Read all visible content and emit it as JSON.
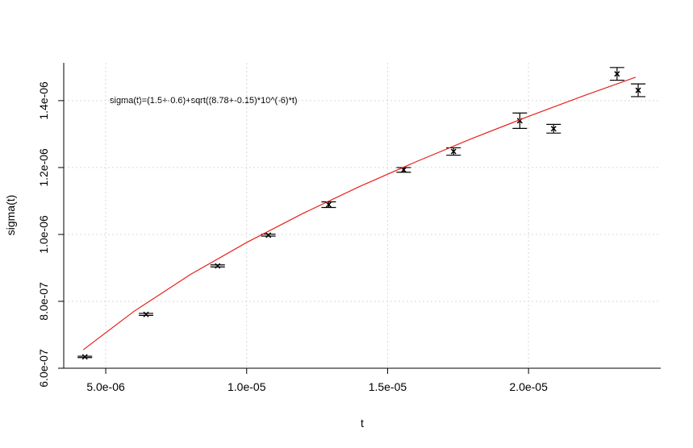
{
  "chart_data": {
    "type": "scatter",
    "x_label": "t",
    "y_label": "sigma(t)",
    "annotation": "sigma(t)=(1.5+-0.6)+sqrt((8.78+-0.15)*10^(-6)*t)",
    "xlim": [
      3.51e-06,
      2.469e-05
    ],
    "ylim": [
      6e-07,
      1.513e-06
    ],
    "xticks": [
      {
        "value": 5e-06,
        "label": "5.0e-06"
      },
      {
        "value": 1e-05,
        "label": "1.0e-05"
      },
      {
        "value": 1.5e-05,
        "label": "1.5e-05"
      },
      {
        "value": 2e-05,
        "label": "2.0e-05"
      }
    ],
    "yticks": [
      {
        "value": 6e-07,
        "label": "6.0e-07"
      },
      {
        "value": 8e-07,
        "label": "8.0e-07"
      },
      {
        "value": 1e-06,
        "label": "1.0e-06"
      },
      {
        "value": 1.2e-06,
        "label": "1.2e-06"
      },
      {
        "value": 1.4e-06,
        "label": "1.4e-06"
      }
    ],
    "grid": true,
    "series": [
      {
        "type": "scatter",
        "color": "#000000",
        "x": [
          4.26e-06,
          6.43e-06,
          8.97e-06,
          1.077e-05,
          1.291e-05,
          1.557e-05,
          1.734e-05,
          1.969e-05,
          2.089e-05,
          2.314e-05,
          2.389e-05
        ],
        "values": [
          6.34e-07,
          7.61e-07,
          9.06e-07,
          9.98e-07,
          1.089e-06,
          1.193e-06,
          1.248e-06,
          1.34e-06,
          1.316e-06,
          1.48e-06,
          1.431e-06
        ],
        "errors": [
          2e-09,
          3e-09,
          3e-09,
          3e-09,
          8.5e-09,
          7e-09,
          1.1e-08,
          2.3e-08,
          1.3e-08,
          1.9e-08,
          1.9e-08
        ]
      },
      {
        "type": "line",
        "color": "#e8211b",
        "x": [
          4.2e-06,
          6e-06,
          8e-06,
          1e-05,
          1.2e-05,
          1.4e-05,
          1.6e-05,
          1.8e-05,
          2e-05,
          2.2e-05,
          2.38e-05
        ],
        "values": [
          6.55e-07,
          7.7e-07,
          8.8e-07,
          9.76e-07,
          1.063e-06,
          1.143e-06,
          1.217e-06,
          1.287e-06,
          1.353e-06,
          1.416e-06,
          1.47e-06
        ]
      }
    ]
  }
}
